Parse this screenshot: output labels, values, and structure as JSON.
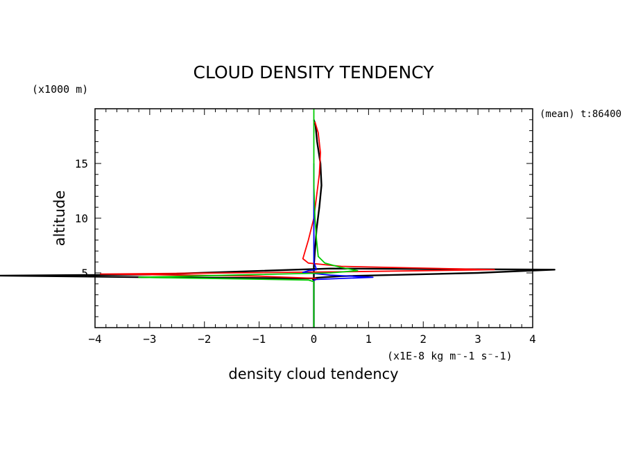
{
  "chart_data": {
    "type": "line",
    "title": "CLOUD DENSITY TENDENCY",
    "xlabel": "density cloud tendency",
    "xunits": "(x1E-8 kg m⁻-1 s⁻-1)",
    "ylabel": "altitude",
    "yunits": "(x1000 m)",
    "annotation": "(mean) t:86400",
    "xlim": [
      -4,
      4
    ],
    "ylim": [
      0,
      20
    ],
    "xticks": [
      -4,
      -3,
      -2,
      -1,
      0,
      1,
      2,
      3,
      4
    ],
    "yticks": [
      5,
      10,
      15
    ],
    "grid": false,
    "series": [
      {
        "color": "#000000",
        "x": [
          0,
          0,
          0,
          0,
          -0.02,
          0.04,
          0.5,
          3.0,
          4.4,
          0.3,
          -3.0,
          -5.8,
          -3.0,
          0.0,
          0.0,
          0.05,
          0.1,
          0.14,
          0.12,
          0.06,
          0.03,
          0.0
        ],
        "y": [
          0,
          3.0,
          4.0,
          4.3,
          4.45,
          4.55,
          4.7,
          5.0,
          5.3,
          5.4,
          4.85,
          4.75,
          4.6,
          4.5,
          5.6,
          9.0,
          11.0,
          13.0,
          15.0,
          17.0,
          18.5,
          19.0
        ]
      },
      {
        "color": "#ff0000",
        "x": [
          0,
          0,
          0,
          0,
          0.06,
          0.03,
          -1.0,
          -3.9,
          -1.5,
          0.5,
          2.0,
          3.3,
          0.5,
          -0.1,
          -0.2,
          -0.1,
          0.0,
          0.05,
          0.1,
          0.12,
          0.08,
          0.02
        ],
        "y": [
          0,
          3.0,
          4.0,
          4.3,
          4.45,
          4.5,
          4.7,
          4.9,
          5.0,
          5.1,
          5.2,
          5.3,
          5.6,
          5.9,
          6.3,
          8.0,
          10.0,
          12.0,
          14.0,
          16.0,
          17.8,
          18.8
        ]
      },
      {
        "color": "#0000ff",
        "x": [
          0,
          0,
          0,
          0,
          0.02,
          1.08,
          0.3,
          -0.2,
          -0.1,
          0.05,
          0.0,
          0.0,
          0.0,
          0.0,
          0.0
        ],
        "y": [
          0,
          3.0,
          4.0,
          4.3,
          4.4,
          4.6,
          4.8,
          5.05,
          5.2,
          5.3,
          6.0,
          8.0,
          10.0,
          13.0,
          15.0
        ]
      },
      {
        "color": "#00cc00",
        "x": [
          0,
          0,
          0,
          0,
          -0.1,
          -3.2,
          -1.5,
          0.3,
          0.8,
          0.5,
          0.2,
          0.08,
          0.05,
          0.02,
          0.0,
          0.0,
          0.0
        ],
        "y": [
          0,
          3.0,
          4.0,
          4.2,
          4.35,
          4.6,
          4.8,
          5.0,
          5.2,
          5.5,
          5.9,
          6.5,
          8.0,
          10.0,
          13.0,
          16.0,
          20.0
        ]
      }
    ]
  }
}
